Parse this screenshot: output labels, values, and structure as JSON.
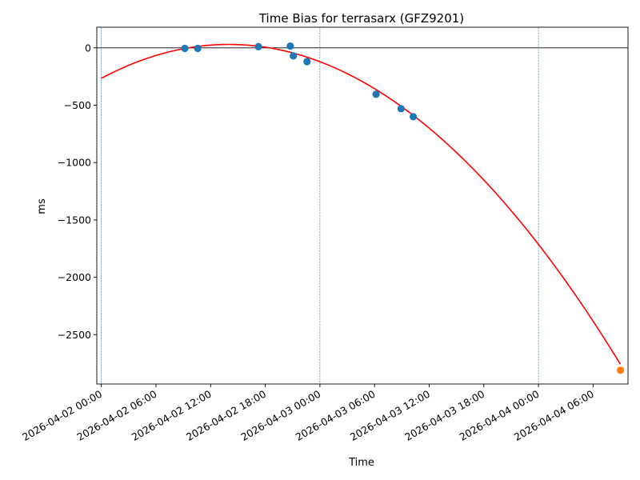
{
  "chart_data": {
    "type": "scatter",
    "title": "Time Bias for terrasarx (GFZ9201)",
    "xlabel": "Time",
    "ylabel": "ms",
    "x_ticks": [
      "2026-04-02 00:00",
      "2026-04-02 06:00",
      "2026-04-02 12:00",
      "2026-04-02 18:00",
      "2026-04-03 00:00",
      "2026-04-03 06:00",
      "2026-04-03 12:00",
      "2026-04-03 18:00",
      "2026-04-04 00:00",
      "2026-04-04 06:00"
    ],
    "y_ticks": [
      0,
      -500,
      -1000,
      -1500,
      -2000,
      -2500
    ],
    "y_tick_labels": [
      "0",
      "−500",
      "−1000",
      "−1500",
      "−2000",
      "−2500"
    ],
    "xlim": [
      "2026-04-01 23:30",
      "2026-04-04 09:50"
    ],
    "ylim": [
      -2930,
      180
    ],
    "grid": false,
    "reference_lines": {
      "horizontal_y": 0,
      "vertical_dashed": [
        "2026-04-02 00:00",
        "2026-04-03 00:00",
        "2026-04-04 00:00"
      ]
    },
    "series": [
      {
        "kind": "scatter",
        "color": "#1f77b4",
        "points": [
          {
            "x": "2026-04-02 09:10",
            "y": -5
          },
          {
            "x": "2026-04-02 10:35",
            "y": -5
          },
          {
            "x": "2026-04-02 17:15",
            "y": 10
          },
          {
            "x": "2026-04-02 20:45",
            "y": 15
          },
          {
            "x": "2026-04-02 21:05",
            "y": -70
          },
          {
            "x": "2026-04-02 22:35",
            "y": -120
          },
          {
            "x": "2026-04-03 06:10",
            "y": -405
          },
          {
            "x": "2026-04-03 08:55",
            "y": -530
          },
          {
            "x": "2026-04-03 10:15",
            "y": -600
          }
        ]
      },
      {
        "kind": "fit",
        "color": "#ff0000",
        "x_start": "2026-04-02 00:00",
        "x_end": "2026-04-04 09:00",
        "y_start": -260,
        "y_peak": 30,
        "x_peak": "2026-04-02 14:00",
        "y_end": -2810
      },
      {
        "kind": "scatter",
        "color": "#ff7f0e",
        "points": [
          {
            "x": "2026-04-04 09:00",
            "y": -2810
          }
        ]
      }
    ]
  }
}
